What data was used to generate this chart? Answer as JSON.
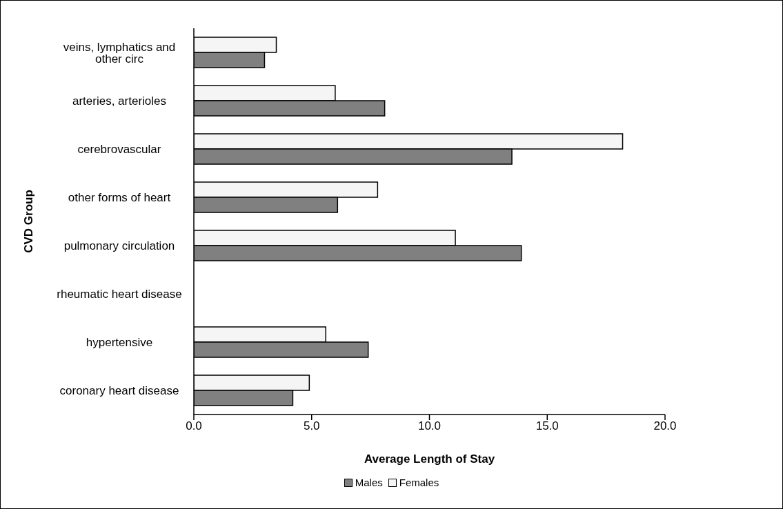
{
  "chart_data": {
    "type": "bar",
    "orientation": "horizontal",
    "xlabel": "Average Length of Stay",
    "ylabel": "CVD Group",
    "categories": [
      "veins, lymphatics and other circ",
      "arteries, arterioles",
      "cerebrovascular",
      "other forms of heart",
      "pulmonary circulation",
      "rheumatic heart disease",
      "hypertensive",
      "coronary heart disease"
    ],
    "series": [
      {
        "name": "Males",
        "color": "#808080",
        "values": [
          3.0,
          8.1,
          13.5,
          6.1,
          13.9,
          null,
          7.4,
          4.2
        ]
      },
      {
        "name": "Females",
        "color": "#f5f5f5",
        "values": [
          3.5,
          6.0,
          18.2,
          7.8,
          11.1,
          null,
          5.6,
          4.9
        ]
      }
    ],
    "xlim": [
      0,
      20
    ],
    "xticks": [
      {
        "value": 0,
        "label": "0.0"
      },
      {
        "value": 5,
        "label": "5.0"
      },
      {
        "value": 10,
        "label": "10.0"
      },
      {
        "value": 15,
        "label": "15.0"
      },
      {
        "value": 20,
        "label": "20.0"
      }
    ],
    "grid": false,
    "legend": "bottom"
  }
}
